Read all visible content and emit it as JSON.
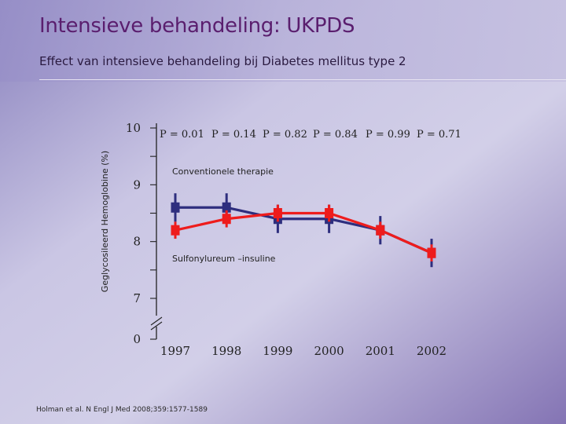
{
  "slide": {
    "title": "Intensieve behandeling: UKPDS",
    "subtitle": "Effect van intensieve behandeling bij Diabetes mellitus type 2",
    "citation": "Holman et al. N Engl J Med 2008;359:1577-1589",
    "colors": {
      "background_light": "#cfcbe6",
      "background_dark": "#8a78b8",
      "title": "#5a1e6e",
      "axis": "#222222"
    }
  },
  "chart_data": {
    "type": "line",
    "ylabel": "Geglycosileerd Hemoglobine (%)",
    "xlabel": "",
    "x": [
      "1997",
      "1998",
      "1999",
      "2000",
      "2001",
      "2002"
    ],
    "y_ticks": [
      10,
      9,
      8,
      7,
      0
    ],
    "y_tick_labels": [
      "10",
      "9",
      "8",
      "7",
      "0"
    ],
    "ylim": [
      7,
      10
    ],
    "y_axis_break": true,
    "p_values": [
      "P = 0.01",
      "P = 0.14",
      "P = 0.82",
      "P = 0.84",
      "P = 0.99",
      "P = 0.71"
    ],
    "series": [
      {
        "name": "Conventionele therapie",
        "color": "#2e2e7e",
        "values": [
          8.6,
          8.6,
          8.4,
          8.4,
          8.2,
          7.8
        ],
        "error": [
          0.25,
          0.25,
          0.25,
          0.25,
          0.25,
          0.25
        ]
      },
      {
        "name": "Sulfonylureum –insuline",
        "color": "#ee1c1c",
        "values": [
          8.2,
          8.4,
          8.5,
          8.5,
          8.2,
          7.8
        ],
        "error": [
          0.15,
          0.15,
          0.15,
          0.15,
          0.15,
          0.15
        ]
      }
    ],
    "grid": false,
    "legend": "inline labels"
  }
}
